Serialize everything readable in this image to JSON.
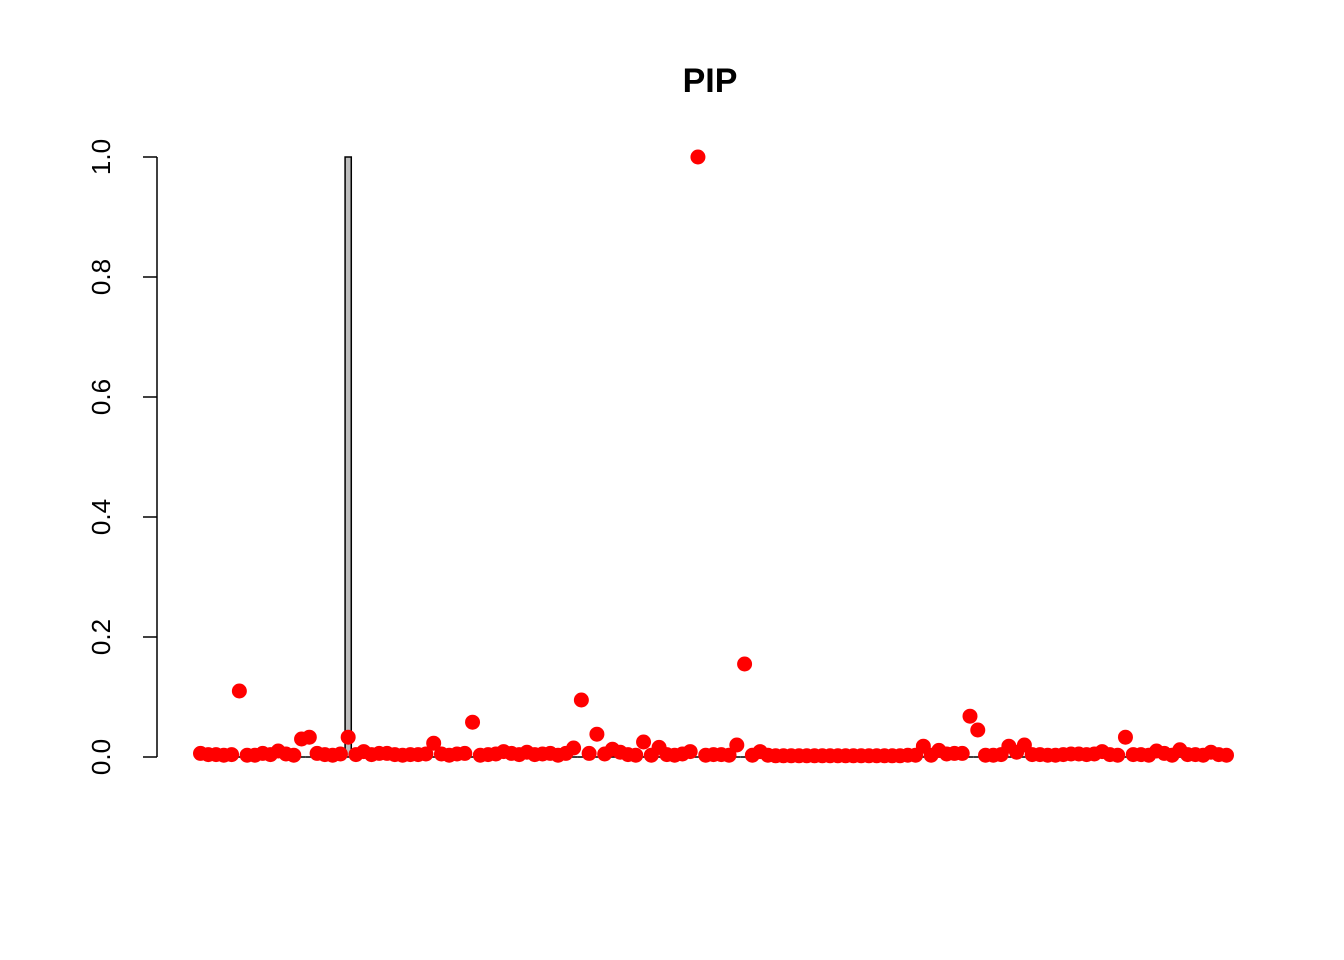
{
  "chart_data": {
    "type": "bar",
    "title": "PIP",
    "xlabel": "",
    "ylabel": "",
    "ylim": [
      0,
      1
    ],
    "yticks": [
      "0.0",
      "0.2",
      "0.4",
      "0.6",
      "0.8",
      "1.0"
    ],
    "ytick_values": [
      0,
      0.2,
      0.4,
      0.6,
      0.8,
      1.0
    ],
    "n_variables": 133,
    "bar_color": "#bebebe",
    "point_color": "#ff0000",
    "series": [
      {
        "kind": "bar",
        "values": [
          0,
          0,
          0,
          0,
          0,
          0,
          0,
          0,
          0,
          0,
          0,
          0,
          0,
          0,
          0,
          0,
          0,
          0,
          0,
          1,
          0,
          0,
          0,
          0,
          0,
          0,
          0,
          0,
          0,
          0,
          0,
          0,
          0,
          0,
          0,
          0,
          0,
          0,
          0,
          0,
          0,
          0,
          0,
          0,
          0,
          0,
          0,
          0,
          0,
          0,
          0,
          0,
          0,
          0,
          0,
          0,
          0,
          0,
          0,
          0,
          0,
          0,
          0,
          0,
          0,
          0,
          0,
          0,
          0,
          0,
          0,
          0,
          0,
          0,
          0,
          0,
          0,
          0,
          0,
          0,
          0,
          0,
          0,
          0,
          0,
          0,
          0,
          0,
          0,
          0,
          0,
          0,
          0,
          0,
          0,
          0,
          0,
          0,
          0,
          0,
          0,
          0,
          0,
          0,
          0,
          0,
          0,
          0,
          0,
          0,
          0,
          0,
          0,
          0,
          0,
          0,
          0,
          0,
          0,
          0,
          0,
          0,
          0,
          0,
          0,
          0,
          0,
          0,
          0,
          0,
          0,
          0,
          0
        ]
      },
      {
        "kind": "point",
        "values": [
          0.006,
          0.004,
          0.004,
          0.003,
          0.004,
          0.11,
          0.003,
          0.003,
          0.006,
          0.004,
          0.01,
          0.005,
          0.003,
          0.03,
          0.033,
          0.006,
          0.004,
          0.003,
          0.005,
          0.033,
          0.004,
          0.009,
          0.004,
          0.006,
          0.006,
          0.004,
          0.003,
          0.004,
          0.004,
          0.005,
          0.023,
          0.005,
          0.003,
          0.005,
          0.006,
          0.058,
          0.003,
          0.004,
          0.005,
          0.009,
          0.006,
          0.004,
          0.008,
          0.004,
          0.005,
          0.006,
          0.003,
          0.006,
          0.015,
          0.095,
          0.006,
          0.038,
          0.005,
          0.013,
          0.008,
          0.004,
          0.003,
          0.025,
          0.003,
          0.016,
          0.004,
          0.003,
          0.005,
          0.009,
          1.0,
          0.003,
          0.004,
          0.004,
          0.003,
          0.02,
          0.155,
          0.003,
          0.009,
          0.003,
          0.002,
          0.002,
          0.002,
          0.002,
          0.002,
          0.002,
          0.002,
          0.002,
          0.002,
          0.002,
          0.002,
          0.002,
          0.002,
          0.002,
          0.002,
          0.002,
          0.002,
          0.003,
          0.003,
          0.018,
          0.003,
          0.011,
          0.005,
          0.006,
          0.006,
          0.068,
          0.045,
          0.003,
          0.003,
          0.004,
          0.018,
          0.008,
          0.02,
          0.004,
          0.004,
          0.003,
          0.003,
          0.004,
          0.005,
          0.005,
          0.004,
          0.005,
          0.009,
          0.004,
          0.003,
          0.033,
          0.004,
          0.004,
          0.003,
          0.01,
          0.006,
          0.003,
          0.012,
          0.004,
          0.004,
          0.003,
          0.008,
          0.004,
          0.003
        ]
      }
    ]
  }
}
